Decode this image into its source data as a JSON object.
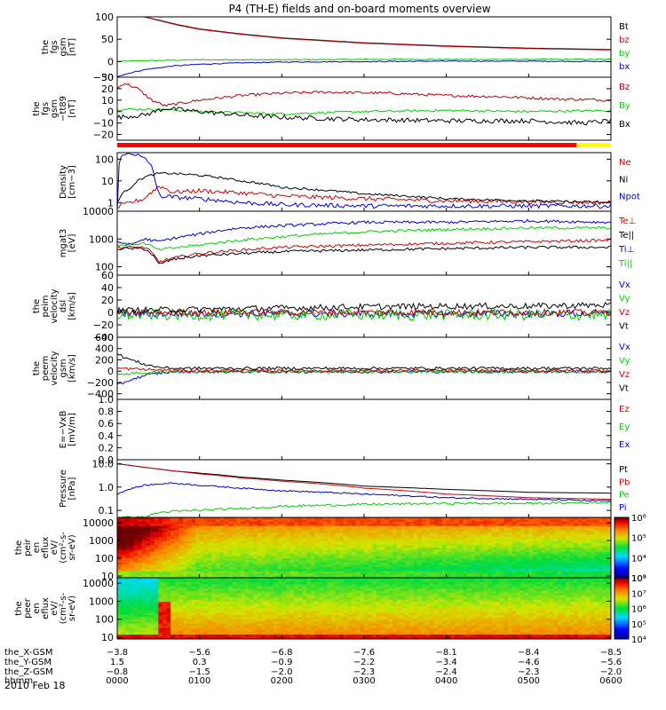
{
  "title": "P4 (TH-E) fields and on-board moments overview",
  "date_label": "2010 Feb 18",
  "chart_data": [
    {
      "type": "line",
      "ylabel": [
        "the",
        "fgs",
        "gsm",
        "[nT]"
      ],
      "ylim": [
        -35,
        100
      ],
      "yscale": "linear",
      "ticks": [
        {
          "v": 100,
          "label": "100"
        },
        {
          "v": 50,
          "label": "50"
        },
        {
          "v": 0,
          "label": "0"
        },
        {
          "v": -50,
          "label": "−50"
        }
      ],
      "series": [
        {
          "name": "Bt",
          "color": "#000000",
          "x": [
            0,
            5,
            10,
            20,
            30,
            45,
            60,
            90,
            120,
            180,
            240,
            300,
            360
          ],
          "y": [
            100,
            100,
            100,
            100,
            93,
            82,
            73,
            62,
            53,
            42,
            35,
            30,
            27
          ],
          "noise": 0
        },
        {
          "name": "bz",
          "color": "#cc0000",
          "x": [
            0,
            5,
            10,
            20,
            30,
            45,
            60,
            90,
            120,
            180,
            240,
            300,
            360
          ],
          "y": [
            100,
            100,
            100,
            100,
            92,
            81,
            72,
            61,
            52,
            41,
            34,
            29,
            26
          ],
          "noise": 0
        },
        {
          "name": "by",
          "color": "#00cc00",
          "x": [
            0,
            20,
            60,
            120,
            180,
            240,
            300,
            360
          ],
          "y": [
            0,
            2,
            4,
            4,
            5,
            5,
            5,
            5
          ],
          "noise": 1
        },
        {
          "name": "bx",
          "color": "#0000cc",
          "x": [
            0,
            10,
            20,
            40,
            60,
            90,
            120,
            180,
            240,
            300,
            360
          ],
          "y": [
            -33,
            -25,
            -18,
            -10,
            -6,
            -3,
            -1,
            0,
            1,
            1,
            0
          ],
          "noise": 1
        }
      ]
    },
    {
      "type": "line",
      "ylabel": [
        "the",
        "fgs",
        "gsm",
        "−tt89",
        "[nT]"
      ],
      "ylim": [
        -25,
        30
      ],
      "yscale": "linear",
      "ticks": [
        {
          "v": 30,
          "label": "30"
        },
        {
          "v": 20,
          "label": "20"
        },
        {
          "v": 10,
          "label": "10"
        },
        {
          "v": 0,
          "label": "0"
        },
        {
          "v": -10,
          "label": "−10"
        },
        {
          "v": -20,
          "label": "−20"
        }
      ],
      "series": [
        {
          "name": "Bz",
          "color": "#aa0000",
          "x": [
            0,
            5,
            15,
            25,
            35,
            60,
            90,
            120,
            150,
            200,
            240,
            280,
            320,
            360
          ],
          "y": [
            20,
            25,
            20,
            10,
            5,
            10,
            14,
            16,
            17,
            16,
            14,
            13,
            11,
            10
          ],
          "noise": 1.2
        },
        {
          "name": "By",
          "color": "#00cc00",
          "x": [
            0,
            30,
            60,
            120,
            180,
            240,
            300,
            360
          ],
          "y": [
            2,
            2,
            0,
            -2,
            0,
            1,
            0,
            1
          ],
          "noise": 1
        },
        {
          "name": "Bx",
          "color": "#000000",
          "x": [
            0,
            20,
            35,
            60,
            90,
            120,
            180,
            240,
            300,
            340,
            360
          ],
          "y": [
            -5,
            -3,
            3,
            0,
            -3,
            -5,
            -7,
            -8,
            -8,
            -10,
            -8
          ],
          "noise": 2
        }
      ]
    },
    {
      "type": "line",
      "ylabel": [
        "Density",
        "[cm−3]"
      ],
      "ylim": [
        0.4,
        200
      ],
      "yscale": "log",
      "ticks": [
        {
          "v": 100,
          "label": "100"
        },
        {
          "v": 10,
          "label": "10"
        },
        {
          "v": 1,
          "label": "1"
        }
      ],
      "series": [
        {
          "name": "Ne",
          "color": "#cc0000",
          "x": [
            0,
            10,
            20,
            28,
            30,
            40,
            60,
            90,
            120,
            180,
            240,
            300,
            360
          ],
          "y": [
            0.6,
            1.0,
            1.5,
            4,
            6,
            3,
            3.5,
            2.8,
            2,
            1.5,
            1.2,
            1.1,
            1.0
          ],
          "noise": 0.1
        },
        {
          "name": "Ni",
          "color": "#000000",
          "x": [
            0,
            10,
            20,
            30,
            40,
            60,
            90,
            120,
            180,
            240,
            300,
            360
          ],
          "y": [
            1,
            5,
            15,
            22,
            22,
            18,
            10,
            5,
            2.5,
            1.5,
            1.2,
            1.0
          ],
          "noise": 0.05
        },
        {
          "name": "Npot",
          "color": "#0000cc",
          "x": [
            0,
            2,
            5,
            10,
            15,
            20,
            25,
            28,
            31,
            40,
            60,
            90,
            120,
            180,
            240,
            300,
            360
          ],
          "y": [
            0.5,
            100,
            150,
            200,
            150,
            100,
            50,
            5,
            2,
            1.8,
            1.5,
            1.0,
            0.8,
            0.7,
            0.7,
            0.7,
            0.7
          ],
          "noise": 0.1
        }
      ]
    },
    {
      "type": "line",
      "ylabel": [
        "mgat3",
        "[eV]"
      ],
      "ylim": [
        50,
        10000
      ],
      "yscale": "log",
      "ticks": [
        {
          "v": 10000,
          "label": "10000"
        },
        {
          "v": 1000,
          "label": "1000"
        },
        {
          "v": 100,
          "label": "100"
        }
      ],
      "series": [
        {
          "name": "Te⊥",
          "color": "#cc0000",
          "x": [
            0,
            20,
            30,
            40,
            60,
            90,
            120,
            180,
            240,
            300,
            360
          ],
          "y": [
            500,
            500,
            150,
            200,
            300,
            400,
            500,
            600,
            700,
            800,
            900
          ],
          "noise": 0.05
        },
        {
          "name": "Te||",
          "color": "#000000",
          "x": [
            0,
            20,
            30,
            40,
            60,
            90,
            120,
            180,
            240,
            300,
            360
          ],
          "y": [
            450,
            450,
            120,
            180,
            250,
            300,
            350,
            400,
            450,
            500,
            500
          ],
          "noise": 0.05
        },
        {
          "name": "Ti⊥",
          "color": "#0000cc",
          "x": [
            0,
            10,
            20,
            30,
            60,
            90,
            120,
            180,
            240,
            300,
            360
          ],
          "y": [
            800,
            600,
            1000,
            800,
            1500,
            2500,
            3000,
            4000,
            4000,
            4500,
            4000
          ],
          "noise": 0.05
        },
        {
          "name": "Ti||",
          "color": "#00cc00",
          "x": [
            0,
            20,
            30,
            60,
            90,
            120,
            180,
            240,
            300,
            360
          ],
          "y": [
            600,
            700,
            400,
            600,
            900,
            1200,
            1800,
            2200,
            2500,
            2500
          ],
          "noise": 0.05
        }
      ]
    },
    {
      "type": "line",
      "ylabel": [
        "the",
        "peim",
        "velocity",
        "dsl",
        "[km/s]"
      ],
      "ylim": [
        -40,
        60
      ],
      "yscale": "linear",
      "ticks": [
        {
          "v": 60,
          "label": "60"
        },
        {
          "v": 40,
          "label": "40"
        },
        {
          "v": 20,
          "label": "20"
        },
        {
          "v": 0,
          "label": "0"
        },
        {
          "v": -20,
          "label": "−20"
        },
        {
          "v": -40,
          "label": "−40"
        }
      ],
      "series": [
        {
          "name": "Vx",
          "color": "#0000cc",
          "x": [
            0,
            360
          ],
          "y": [
            -2,
            -2
          ],
          "noise": 6
        },
        {
          "name": "Vy",
          "color": "#00cc00",
          "x": [
            0,
            360
          ],
          "y": [
            -4,
            -4
          ],
          "noise": 9
        },
        {
          "name": "Vz",
          "color": "#cc0000",
          "x": [
            0,
            360
          ],
          "y": [
            0,
            0
          ],
          "noise": 5
        },
        {
          "name": "Vt",
          "color": "#000000",
          "x": [
            0,
            60,
            120,
            180,
            240,
            300,
            360
          ],
          "y": [
            3,
            5,
            7,
            9,
            10,
            10,
            12
          ],
          "noise": 5
        }
      ]
    },
    {
      "type": "line",
      "ylabel": [
        "the",
        "peem",
        "velocity",
        "gsm",
        "[km/s]"
      ],
      "ylim": [
        -500,
        600
      ],
      "yscale": "linear",
      "ticks": [
        {
          "v": 600,
          "label": "600"
        },
        {
          "v": 400,
          "label": "400"
        },
        {
          "v": 200,
          "label": "200"
        },
        {
          "v": 0,
          "label": "0"
        },
        {
          "v": -200,
          "label": "−200"
        },
        {
          "v": -400,
          "label": "−400"
        }
      ],
      "series": [
        {
          "name": "Vx",
          "color": "#0000cc",
          "x": [
            0,
            10,
            20,
            30,
            40,
            360
          ],
          "y": [
            -250,
            -150,
            -80,
            -40,
            -10,
            -10
          ],
          "noise": 25
        },
        {
          "name": "Vy",
          "color": "#00cc00",
          "x": [
            0,
            20,
            40,
            360
          ],
          "y": [
            -50,
            -30,
            -10,
            -10
          ],
          "noise": 25
        },
        {
          "name": "Vz",
          "color": "#cc0000",
          "x": [
            0,
            20,
            40,
            360
          ],
          "y": [
            50,
            30,
            10,
            10
          ],
          "noise": 25
        },
        {
          "name": "Vt",
          "color": "#000000",
          "x": [
            0,
            10,
            20,
            30,
            40,
            360
          ],
          "y": [
            300,
            200,
            120,
            70,
            50,
            50
          ],
          "noise": 25
        }
      ]
    },
    {
      "type": "line",
      "ylabel": [
        "E=−VxB",
        "[mV/m]"
      ],
      "ylim": [
        0,
        1
      ],
      "yscale": "linear",
      "ticks": [
        {
          "v": 1.0,
          "label": "1.0"
        },
        {
          "v": 0.8,
          "label": "0.8"
        },
        {
          "v": 0.6,
          "label": "0.6"
        },
        {
          "v": 0.4,
          "label": "0.4"
        },
        {
          "v": 0.2,
          "label": "0.2"
        },
        {
          "v": 0.0,
          "label": "0.0"
        }
      ],
      "series": [
        {
          "name": "Ez",
          "color": "#cc0000",
          "x": [],
          "y": [],
          "noise": 0
        },
        {
          "name": "Ey",
          "color": "#00cc00",
          "x": [],
          "y": [],
          "noise": 0
        },
        {
          "name": "Ex",
          "color": "#0000cc",
          "x": [],
          "y": [],
          "noise": 0
        }
      ]
    },
    {
      "type": "line",
      "ylabel": [
        "Pressure",
        "[nPa]"
      ],
      "ylim": [
        0.05,
        15
      ],
      "yscale": "log",
      "ticks": [
        {
          "v": 10,
          "label": "10.0"
        },
        {
          "v": 1,
          "label": "1.0"
        },
        {
          "v": 0.1,
          "label": "0.1"
        }
      ],
      "series": [
        {
          "name": "Pt",
          "color": "#000000",
          "x": [
            0,
            20,
            40,
            60,
            90,
            120,
            180,
            240,
            300,
            360
          ],
          "y": [
            10,
            7,
            5,
            4,
            2.7,
            2,
            1.1,
            0.8,
            0.6,
            0.55
          ],
          "noise": 0
        },
        {
          "name": "Pb",
          "color": "#cc0000",
          "x": [
            0,
            20,
            40,
            60,
            90,
            120,
            180,
            240,
            300,
            360
          ],
          "y": [
            10,
            7,
            5,
            3.7,
            2.5,
            1.8,
            0.9,
            0.5,
            0.35,
            0.3
          ],
          "noise": 0
        },
        {
          "name": "Pe",
          "color": "#00cc00",
          "x": [
            0,
            20,
            30,
            40,
            60,
            90,
            120,
            180,
            240,
            300,
            360
          ],
          "y": [
            0.05,
            0.05,
            0.08,
            0.09,
            0.1,
            0.12,
            0.15,
            0.18,
            0.2,
            0.2,
            0.22
          ],
          "noise": 0.05
        },
        {
          "name": "Pi",
          "color": "#0000cc",
          "x": [
            0,
            20,
            40,
            60,
            90,
            120,
            180,
            240,
            300,
            360
          ],
          "y": [
            0.5,
            1.2,
            1.5,
            1.2,
            0.9,
            0.7,
            0.5,
            0.35,
            0.3,
            0.25
          ],
          "noise": 0.03
        }
      ]
    },
    {
      "type": "heatmap",
      "ylabel": [
        "the",
        "peir",
        "en",
        "eflux",
        "eV/",
        "(cm²-s-",
        "sr-eV)"
      ],
      "ylim": [
        8,
        20000
      ],
      "yscale": "log",
      "ticks": [
        {
          "v": 10000,
          "label": "10000"
        },
        {
          "v": 1000,
          "label": "1000"
        },
        {
          "v": 100,
          "label": "100"
        },
        {
          "v": 10,
          "label": "10"
        }
      ],
      "colorbar": {
        "min_exp": 3,
        "max_exp": 6,
        "ticks": [
          {
            "exp": 6,
            "label": "10⁶"
          },
          {
            "exp": 5,
            "label": "10⁵"
          },
          {
            "exp": 4,
            "label": "10⁴"
          },
          {
            "exp": 3,
            "label": "10³"
          }
        ]
      },
      "model": "ion"
    },
    {
      "type": "heatmap",
      "ylabel": [
        "the",
        "peer",
        "en",
        "eflux",
        "eV/",
        "(cm²-s-",
        "sr-eV)"
      ],
      "ylim": [
        8,
        20000
      ],
      "yscale": "log",
      "ticks": [
        {
          "v": 10000,
          "label": "10000"
        },
        {
          "v": 1000,
          "label": "1000"
        },
        {
          "v": 100,
          "label": "100"
        },
        {
          "v": 10,
          "label": "10"
        }
      ],
      "colorbar": {
        "min_exp": 4,
        "max_exp": 8,
        "ticks": [
          {
            "exp": 8,
            "label": "10⁸"
          },
          {
            "exp": 7,
            "label": "10⁷"
          },
          {
            "exp": 6,
            "label": "10⁶"
          },
          {
            "exp": 5,
            "label": "10⁵"
          },
          {
            "exp": 4,
            "label": "10⁴"
          }
        ]
      },
      "model": "electron"
    }
  ],
  "mode_bar": {
    "colors": [
      "#ff0000",
      "#ffff00"
    ],
    "switch_minute": 335
  },
  "x_axis": {
    "range_minutes": [
      0,
      360
    ],
    "tick_minutes": [
      0,
      60,
      120,
      180,
      240,
      300,
      360
    ],
    "rows": [
      {
        "name": "the_X-GSM",
        "values": [
          "−3.8",
          "−5.6",
          "−6.8",
          "−7.6",
          "−8.1",
          "−8.4",
          "−8.5"
        ]
      },
      {
        "name": "the_Y-GSM",
        "values": [
          "1.5",
          "0.3",
          "−0.9",
          "−2.2",
          "−3.4",
          "−4.6",
          "−5.6"
        ]
      },
      {
        "name": "the_Z-GSM",
        "values": [
          "−0.8",
          "−1.5",
          "−2.0",
          "−2.3",
          "−2.4",
          "−2.3",
          "−2.0"
        ]
      },
      {
        "name": "hhmm",
        "values": [
          "0000",
          "0100",
          "0200",
          "0300",
          "0400",
          "0500",
          "0600"
        ]
      }
    ]
  }
}
